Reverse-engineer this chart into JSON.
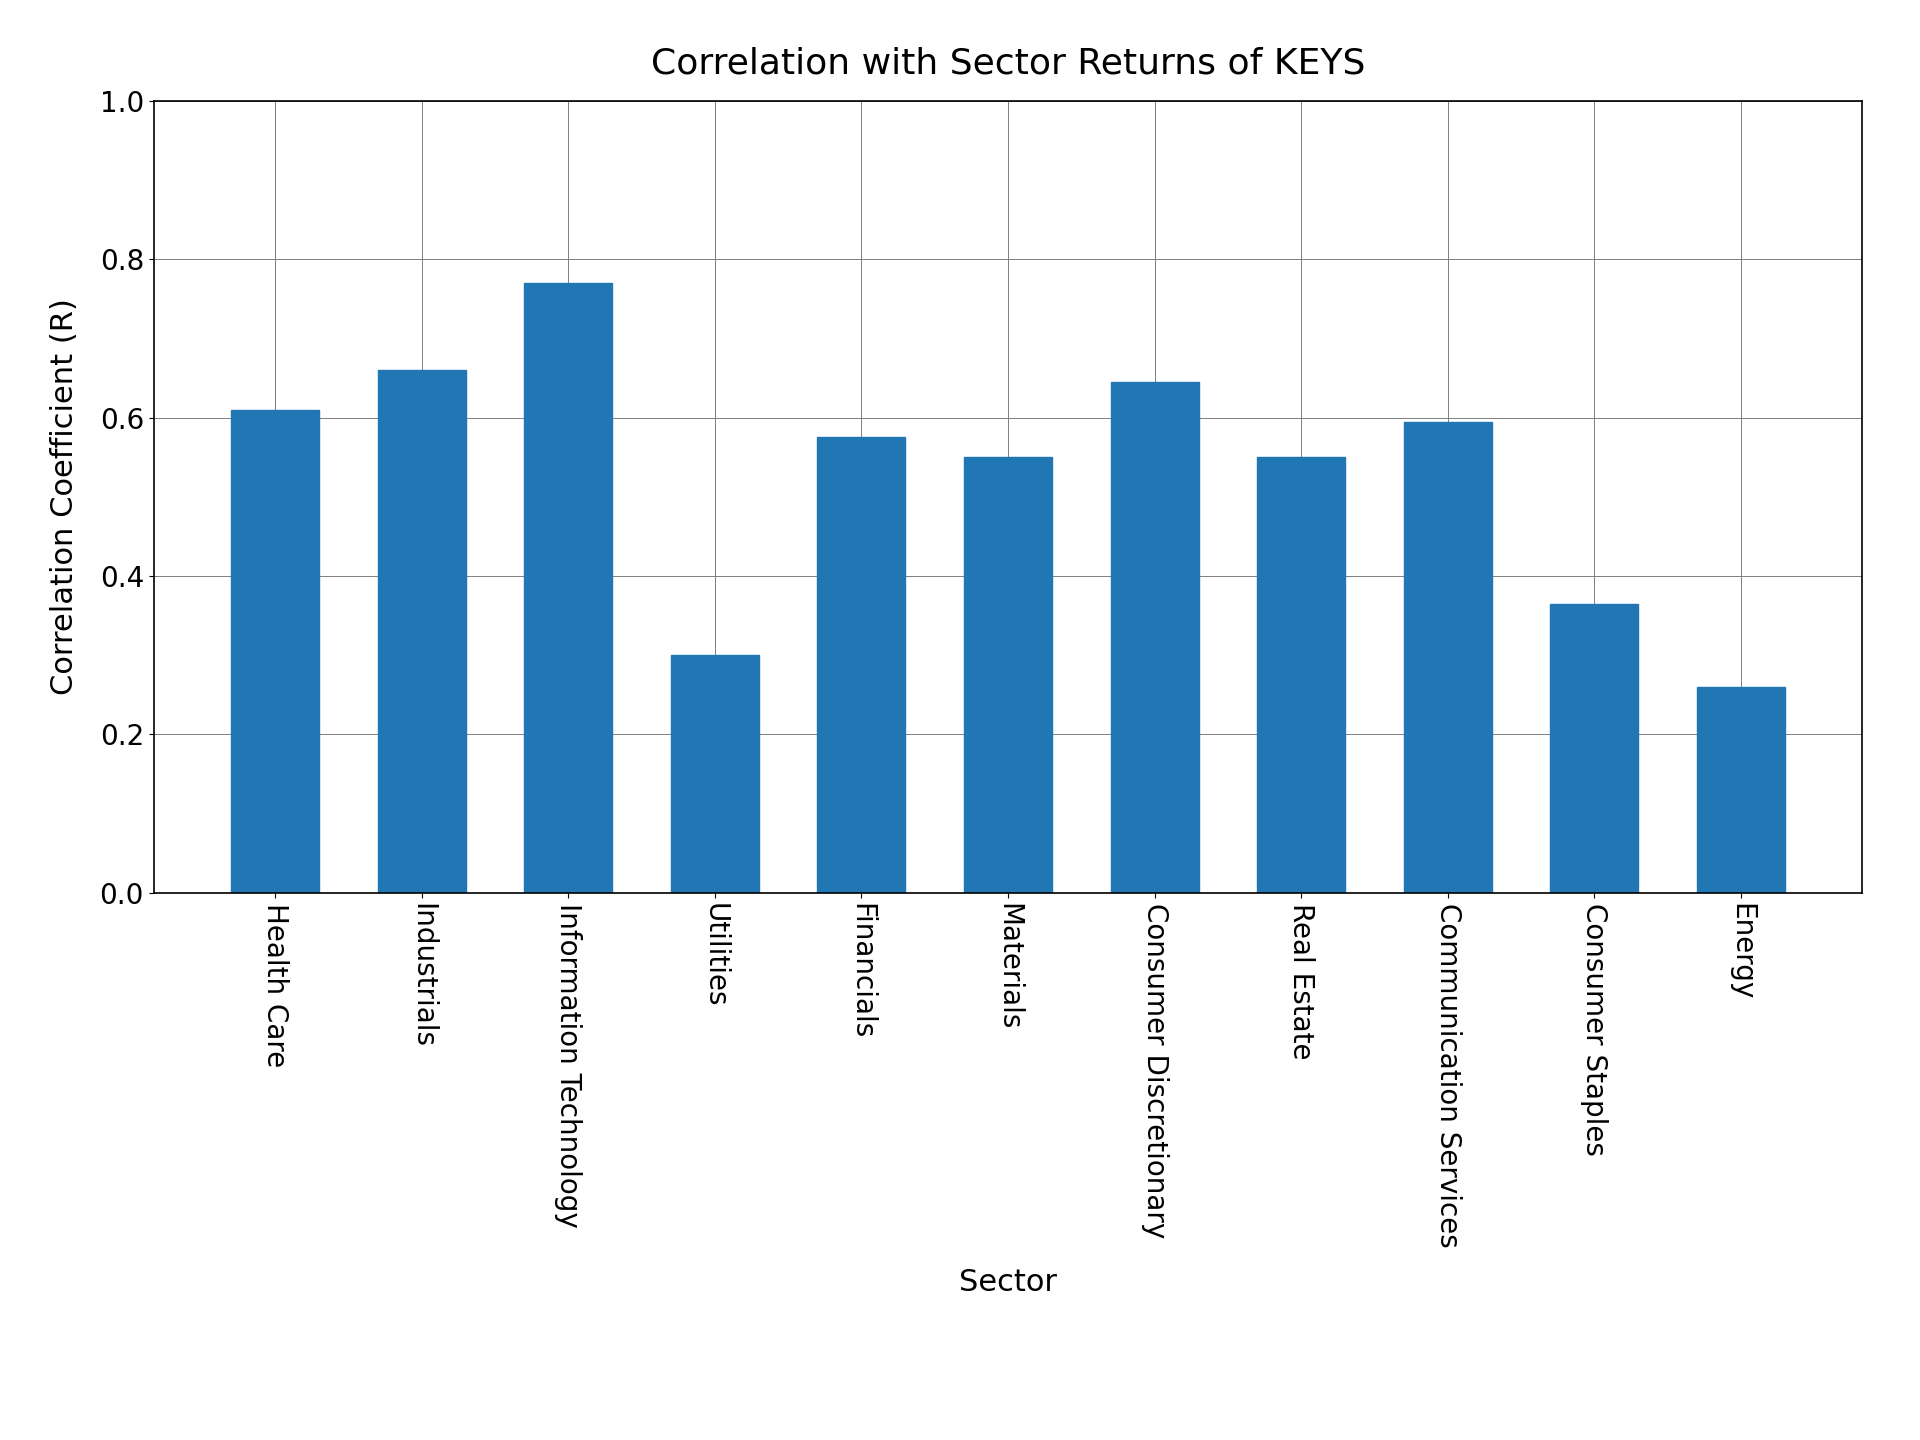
{
  "title": "Correlation with Sector Returns of KEYS",
  "xlabel": "Sector",
  "ylabel": "Correlation Coefficient (R)",
  "categories": [
    "Health Care",
    "Industrials",
    "Information Technology",
    "Utilities",
    "Financials",
    "Materials",
    "Consumer Discretionary",
    "Real Estate",
    "Communication Services",
    "Consumer Staples",
    "Energy"
  ],
  "values": [
    0.61,
    0.66,
    0.77,
    0.3,
    0.575,
    0.55,
    0.645,
    0.55,
    0.595,
    0.365,
    0.26
  ],
  "bar_color": "#2077b4",
  "ylim": [
    0.0,
    1.0
  ],
  "yticks": [
    0.0,
    0.2,
    0.4,
    0.6,
    0.8,
    1.0
  ],
  "title_fontsize": 26,
  "label_fontsize": 22,
  "tick_fontsize": 20,
  "background_color": "#ffffff"
}
